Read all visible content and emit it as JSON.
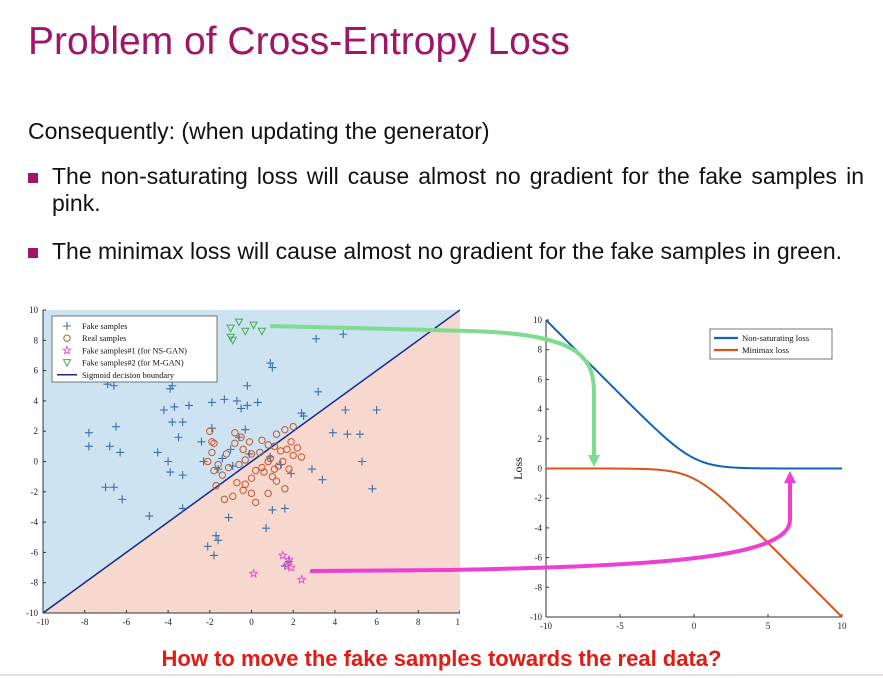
{
  "slide": {
    "title": "Problem of Cross-Entropy Loss",
    "intro": "Consequently: (when updating the generator)",
    "bullets": [
      "The non-saturating loss will cause almost no gradient for the fake samples in pink.",
      "The minimax loss will cause almost no gradient for the fake samples in green."
    ],
    "bullet2_line1": "The minimax loss will cause almost no gradient for the fake",
    "bullet2_line2": "samples in green.",
    "question": "How to move the fake samples towards the real data?",
    "colors": {
      "title": "#a01568",
      "bullet_marker": "#a01568",
      "question": "#e21b14",
      "green_arrow": "#7ddc8e",
      "pink_arrow": "#ee3fd2"
    }
  },
  "chart_data": [
    {
      "type": "scatter",
      "xlim": [
        -10,
        10
      ],
      "ylim": [
        -10,
        10
      ],
      "xticks": [
        "-10",
        "-8",
        "-6",
        "-4",
        "-2",
        "0",
        "2",
        "4",
        "6",
        "8",
        "10"
      ],
      "yticks": [
        "10",
        "8",
        "6",
        "4",
        "2",
        "0",
        "-2",
        "-4",
        "-6",
        "-8",
        "-10"
      ],
      "legend_position": "top-left",
      "legend": [
        "Fake samples",
        "Real samples",
        "Fake samples#1 (for NS-GAN)",
        "Fake samples#2 (for M-GAN)",
        "Sigmoid decision boundary"
      ],
      "decision_boundary": {
        "slope": 1.0,
        "intercept": 0
      },
      "regions": {
        "upper_left": "#cde3f2",
        "lower_right": "#f6d8cf"
      },
      "series": [
        {
          "name": "Fake samples",
          "marker": "plus",
          "color": "#3d6fa8",
          "points": [
            [
              -7.8,
              1.9
            ],
            [
              -7.8,
              1.0
            ],
            [
              -6.8,
              1.0
            ],
            [
              -6.5,
              2.3
            ],
            [
              -6.3,
              0.6
            ],
            [
              -6.6,
              -1.7
            ],
            [
              -7.0,
              -1.7
            ],
            [
              -6.2,
              -2.5
            ],
            [
              -6.9,
              5.1
            ],
            [
              -6.6,
              5.0
            ],
            [
              -5.5,
              5.9
            ],
            [
              -4.9,
              5.9
            ],
            [
              -3.9,
              4.8
            ],
            [
              -3.8,
              5.0
            ],
            [
              -4.2,
              3.4
            ],
            [
              -3.7,
              3.6
            ],
            [
              -3.0,
              3.7
            ],
            [
              -3.3,
              2.6
            ],
            [
              -3.8,
              2.6
            ],
            [
              -1.9,
              3.9
            ],
            [
              -1.3,
              4.1
            ],
            [
              -0.7,
              4.0
            ],
            [
              -0.5,
              3.5
            ],
            [
              -0.2,
              3.7
            ],
            [
              0.3,
              3.9
            ],
            [
              -0.2,
              5.0
            ],
            [
              0.9,
              6.5
            ],
            [
              1.0,
              6.2
            ],
            [
              3.1,
              8.1
            ],
            [
              4.4,
              8.4
            ],
            [
              3.2,
              4.6
            ],
            [
              2.5,
              3.0
            ],
            [
              2.4,
              3.2
            ],
            [
              -1.9,
              2.2
            ],
            [
              -2.4,
              1.3
            ],
            [
              -3.5,
              1.6
            ],
            [
              -4.5,
              0.6
            ],
            [
              -4.0,
              0.0
            ],
            [
              -3.9,
              -0.7
            ],
            [
              -3.3,
              -0.9
            ],
            [
              -2.3,
              0.0
            ],
            [
              -1.6,
              -0.5
            ],
            [
              -0.9,
              -0.3
            ],
            [
              -0.1,
              0.5
            ],
            [
              0.9,
              0.3
            ],
            [
              1.4,
              -0.2
            ],
            [
              1.9,
              -0.8
            ],
            [
              2.9,
              -0.5
            ],
            [
              3.4,
              -1.2
            ],
            [
              3.9,
              1.9
            ],
            [
              4.6,
              1.8
            ],
            [
              5.2,
              1.8
            ],
            [
              5.3,
              0.0
            ],
            [
              5.8,
              -1.8
            ],
            [
              6.0,
              3.4
            ],
            [
              4.5,
              3.4
            ],
            [
              -1.1,
              -3.7
            ],
            [
              -1.7,
              -4.9
            ],
            [
              -1.6,
              -5.2
            ],
            [
              -2.1,
              -5.6
            ],
            [
              -1.8,
              -6.2
            ],
            [
              0.7,
              -4.4
            ],
            [
              1.0,
              -3.2
            ],
            [
              1.6,
              -3.1
            ],
            [
              -3.3,
              -3.1
            ],
            [
              -4.9,
              -3.6
            ],
            [
              1.6,
              -6.9
            ],
            [
              1.8,
              -6.6
            ],
            [
              -0.6,
              1.6
            ],
            [
              -0.3,
              2.1
            ],
            [
              -1.0,
              0.8
            ],
            [
              -1.4,
              0.2
            ]
          ]
        },
        {
          "name": "Real samples",
          "marker": "circle",
          "color": "#c4562e",
          "points": [
            [
              -2.0,
              2.0
            ],
            [
              -1.9,
              1.3
            ],
            [
              -0.8,
              1.9
            ],
            [
              -0.5,
              1.6
            ],
            [
              -0.8,
              1.2
            ],
            [
              -0.4,
              0.8
            ],
            [
              0.0,
              0.5
            ],
            [
              -0.3,
              0.1
            ],
            [
              0.4,
              0.6
            ],
            [
              0.8,
              1.1
            ],
            [
              1.1,
              1.0
            ],
            [
              1.4,
              0.7
            ],
            [
              1.7,
              0.8
            ],
            [
              2.0,
              0.4
            ],
            [
              2.2,
              0.9
            ],
            [
              1.9,
              1.3
            ],
            [
              1.2,
              1.8
            ],
            [
              1.6,
              2.1
            ],
            [
              2.0,
              2.3
            ],
            [
              1.3,
              -0.3
            ],
            [
              1.5,
              0.0
            ],
            [
              1.1,
              -0.5
            ],
            [
              0.8,
              0.0
            ],
            [
              0.5,
              -0.4
            ],
            [
              0.2,
              -0.6
            ],
            [
              0.0,
              -1.1
            ],
            [
              -0.3,
              -1.5
            ],
            [
              -0.7,
              -1.4
            ],
            [
              -1.1,
              -0.4
            ],
            [
              -1.4,
              -0.9
            ],
            [
              -1.6,
              -0.2
            ],
            [
              -1.9,
              0.6
            ],
            [
              -1.8,
              1.2
            ],
            [
              -1.2,
              0.5
            ],
            [
              -0.6,
              -0.2
            ],
            [
              0.6,
              -0.7
            ],
            [
              1.0,
              -1.0
            ],
            [
              1.2,
              -1.3
            ],
            [
              1.6,
              -1.8
            ],
            [
              0.8,
              -2.1
            ],
            [
              0.2,
              -2.7
            ],
            [
              0.0,
              -2.1
            ],
            [
              -0.4,
              -1.9
            ],
            [
              -0.9,
              -2.3
            ],
            [
              -1.3,
              -2.5
            ],
            [
              -1.7,
              -1.6
            ],
            [
              -2.1,
              0.0
            ],
            [
              -1.8,
              -0.6
            ],
            [
              -0.1,
              1.3
            ],
            [
              0.5,
              1.4
            ],
            [
              0.9,
              0.2
            ],
            [
              1.8,
              -0.5
            ],
            [
              2.4,
              0.3
            ]
          ]
        },
        {
          "name": "Fake samples#1 (for NS-GAN)",
          "marker": "star",
          "color": "#e647cc",
          "points": [
            [
              1.5,
              -6.2
            ],
            [
              1.7,
              -6.9
            ],
            [
              1.9,
              -7.0
            ],
            [
              2.4,
              -7.8
            ],
            [
              0.1,
              -7.4
            ],
            [
              1.8,
              -6.5
            ]
          ]
        },
        {
          "name": "Fake samples#2 (for M-GAN)",
          "marker": "triangle-down",
          "color": "#3bb04a",
          "points": [
            [
              -0.6,
              9.2
            ],
            [
              -1.0,
              8.8
            ],
            [
              0.1,
              9.0
            ],
            [
              -0.3,
              8.6
            ],
            [
              -0.9,
              8.0
            ],
            [
              -1.0,
              8.2
            ],
            [
              0.5,
              8.6
            ]
          ]
        }
      ]
    },
    {
      "type": "line",
      "ylabel": "Loss",
      "xlim": [
        -10,
        10
      ],
      "ylim": [
        -10,
        10
      ],
      "xticks": [
        "-10",
        "-5",
        "0",
        "5",
        "10"
      ],
      "yticks": [
        "10",
        "8",
        "6",
        "4",
        "2",
        "0",
        "-2",
        "-4",
        "-6",
        "-8",
        "-10"
      ],
      "legend_position": "top-right",
      "series": [
        {
          "name": "Non-saturating loss",
          "color": "#1064b4",
          "function": "softplus(-x)"
        },
        {
          "name": "Minimax loss",
          "color": "#d9541a",
          "function": "-softplus(x)"
        }
      ]
    }
  ]
}
